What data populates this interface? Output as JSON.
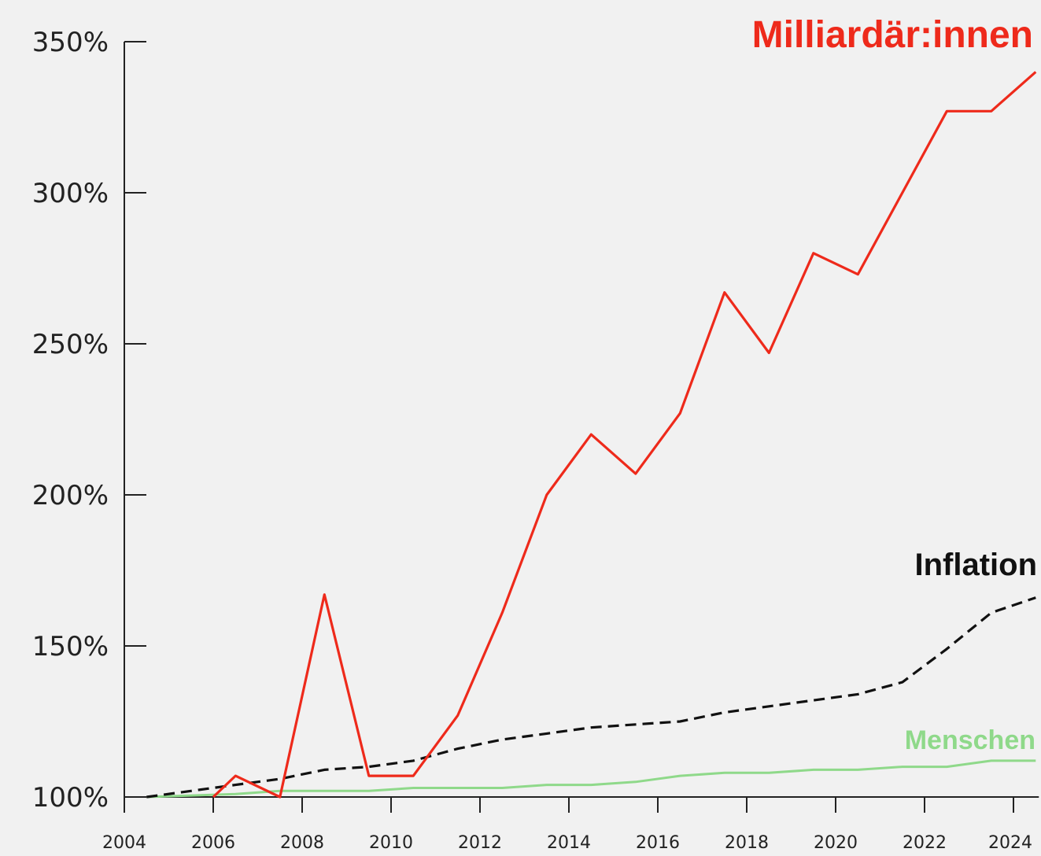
{
  "colors": {
    "background": "#f1f1f1",
    "axis": "#222222",
    "billionaires": "#ee2a1b",
    "inflation": "#111111",
    "people": "#8fd98a"
  },
  "chart_data": {
    "type": "line",
    "title": "",
    "xlabel": "",
    "ylabel": "",
    "xlim": [
      2004,
      2024.5
    ],
    "ylim": [
      100,
      350
    ],
    "xticks": [
      2004,
      2006,
      2008,
      2010,
      2012,
      2014,
      2016,
      2018,
      2020,
      2022,
      2024
    ],
    "yticks": [
      100,
      150,
      200,
      250,
      300,
      350
    ],
    "ytick_labels": [
      "100%",
      "150%",
      "200%",
      "250%",
      "300%",
      "350%"
    ],
    "xtick_labels": [
      "2004",
      "2006",
      "2008",
      "2010",
      "2012",
      "2014",
      "2016",
      "2018",
      "2020",
      "2022",
      "2024"
    ],
    "grid": false,
    "legend": "direct labels at right end of lines",
    "series": [
      {
        "name": "Milliardär:innen",
        "style": "solid",
        "x": [
          2006.0,
          2006.5,
          2007.5,
          2008.5,
          2009.5,
          2010.5,
          2011.5,
          2012.5,
          2013.5,
          2014.5,
          2015.5,
          2016.5,
          2017.5,
          2018.5,
          2019.5,
          2020.5,
          2021.5,
          2022.5,
          2023.5,
          2024.5
        ],
        "values": [
          100,
          107,
          100,
          167,
          107,
          107,
          127,
          161,
          200,
          220,
          207,
          227,
          267,
          247,
          280,
          273,
          300,
          327,
          327,
          340
        ]
      },
      {
        "name": "Inflation",
        "style": "dashed",
        "x": [
          2004.5,
          2005.5,
          2006.5,
          2007.5,
          2008.5,
          2009.5,
          2010.5,
          2011.5,
          2012.5,
          2013.5,
          2014.5,
          2015.5,
          2016.5,
          2017.5,
          2018.5,
          2019.5,
          2020.5,
          2021.5,
          2022.5,
          2023.5,
          2024.5
        ],
        "values": [
          100,
          102,
          104,
          106,
          109,
          110,
          112,
          116,
          119,
          121,
          123,
          124,
          125,
          128,
          130,
          132,
          134,
          138,
          149,
          161,
          166
        ]
      },
      {
        "name": "Menschen",
        "style": "solid",
        "x": [
          2004.5,
          2005.5,
          2006.5,
          2007.5,
          2008.5,
          2009.5,
          2010.5,
          2011.5,
          2012.5,
          2013.5,
          2014.5,
          2015.5,
          2016.5,
          2017.5,
          2018.5,
          2019.5,
          2020.5,
          2021.5,
          2022.5,
          2023.5,
          2024.5
        ],
        "values": [
          100,
          100.5,
          101,
          102,
          102,
          102,
          103,
          103,
          103,
          104,
          104,
          105,
          107,
          108,
          108,
          109,
          109,
          110,
          110,
          112,
          112
        ]
      }
    ]
  }
}
